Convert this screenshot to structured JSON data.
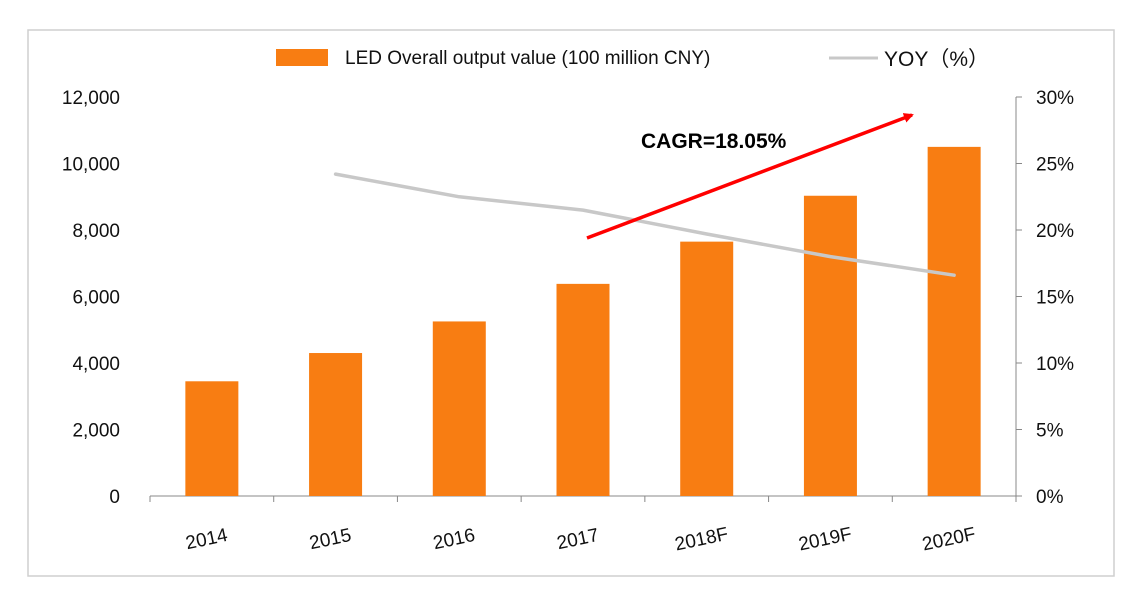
{
  "chart_data": {
    "type": "bar",
    "categories": [
      "2014",
      "2015",
      "2016",
      "2017",
      "2018F",
      "2019F",
      "2020F"
    ],
    "series": [
      {
        "name": "LED Overall output value (100 million CNY)",
        "kind": "bar",
        "axis": "left",
        "color": "#F87D12",
        "values": [
          3450,
          4300,
          5250,
          6380,
          7650,
          9030,
          10500
        ]
      },
      {
        "name": "YOY（%）",
        "kind": "line",
        "axis": "right",
        "color": "#C8C8C8",
        "values": [
          null,
          0.242,
          0.225,
          0.215,
          0.197,
          0.18,
          0.166
        ]
      }
    ],
    "ylim_left": [
      0,
      12000
    ],
    "ylim_right": [
      0,
      0.3
    ],
    "yticks_left": [
      "0",
      "2,000",
      "4,000",
      "6,000",
      "8,000",
      "10,000",
      "12,000"
    ],
    "yticks_right": [
      "0%",
      "5%",
      "10%",
      "15%",
      "20%",
      "25%",
      "30%"
    ],
    "legend_position": "top",
    "grid": false,
    "annotation": {
      "text": "CAGR=18.05%",
      "color": "#FF0000"
    }
  }
}
